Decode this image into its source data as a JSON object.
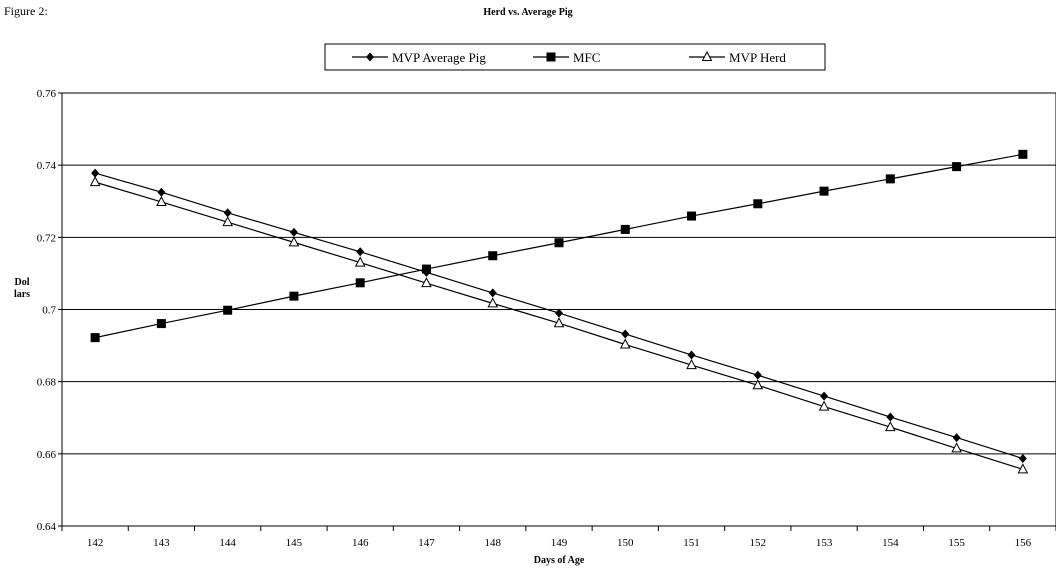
{
  "figure_label": "Figure 2:",
  "chart_data": {
    "type": "line",
    "title": "Herd vs. Average Pig",
    "xlabel": "Days of Age",
    "ylabel_lines": [
      "Dol",
      "lars"
    ],
    "x": [
      142,
      143,
      144,
      145,
      146,
      147,
      148,
      149,
      150,
      151,
      152,
      153,
      154,
      155,
      156
    ],
    "ylim": [
      0.64,
      0.76
    ],
    "yticks": [
      0.64,
      0.66,
      0.68,
      0.7,
      0.72,
      0.74,
      0.76
    ],
    "ytick_labels": [
      "0.64",
      "0.66",
      "0.68",
      "0.7",
      "0.72",
      "0.74",
      "0.76"
    ],
    "grid": "horizontal",
    "legend_position": "top-center",
    "series": [
      {
        "name": "MVP Average Pig",
        "marker": "diamond",
        "values": [
          0.7378,
          0.7325,
          0.7268,
          0.7214,
          0.716,
          0.7103,
          0.7046,
          0.699,
          0.6932,
          0.6874,
          0.6818,
          0.676,
          0.6702,
          0.6645,
          0.6587
        ]
      },
      {
        "name": "MFC",
        "marker": "square",
        "values": [
          0.6922,
          0.6961,
          0.6998,
          0.7037,
          0.7074,
          0.7112,
          0.7149,
          0.7185,
          0.7222,
          0.7259,
          0.7293,
          0.7328,
          0.7362,
          0.7396,
          0.743
        ]
      },
      {
        "name": "MVP Herd",
        "marker": "triangle",
        "values": [
          0.7353,
          0.7298,
          0.7242,
          0.7186,
          0.713,
          0.7073,
          0.7017,
          0.6962,
          0.6903,
          0.6846,
          0.679,
          0.6731,
          0.6674,
          0.6615,
          0.6557
        ]
      }
    ]
  }
}
